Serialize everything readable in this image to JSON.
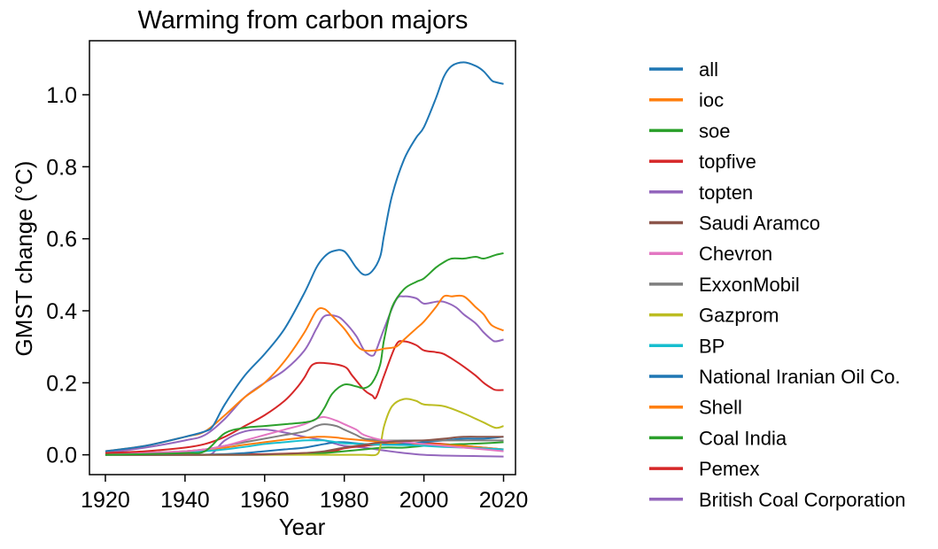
{
  "chart_data": {
    "type": "line",
    "title": "Warming from carbon majors",
    "xlabel": "Year",
    "ylabel": "GMST change (°C)",
    "xlim": [
      1916,
      2023
    ],
    "ylim": [
      -0.055,
      1.15
    ],
    "xticks": [
      1920,
      1940,
      1960,
      1980,
      2000,
      2020
    ],
    "yticks": [
      0.0,
      0.2,
      0.4,
      0.6,
      0.8,
      1.0
    ],
    "ytick_labels": [
      "0.0",
      "0.2",
      "0.4",
      "0.6",
      "0.8",
      "1.0"
    ],
    "grid": false,
    "legend_position": "right, outside plot",
    "series": [
      {
        "name": "all",
        "color": "#1f77b4",
        "x": [
          1920,
          1930,
          1940,
          1945,
          1947,
          1950,
          1955,
          1960,
          1965,
          1970,
          1973,
          1975,
          1977,
          1980,
          1983,
          1985,
          1987,
          1989,
          1990,
          1992,
          1995,
          1998,
          2000,
          2003,
          2005,
          2007,
          2010,
          2013,
          2015,
          2017,
          2018,
          2020
        ],
        "y": [
          0.01,
          0.025,
          0.05,
          0.065,
          0.08,
          0.14,
          0.22,
          0.28,
          0.35,
          0.45,
          0.52,
          0.55,
          0.565,
          0.565,
          0.52,
          0.5,
          0.51,
          0.55,
          0.61,
          0.72,
          0.82,
          0.88,
          0.91,
          0.99,
          1.05,
          1.08,
          1.09,
          1.08,
          1.065,
          1.04,
          1.035,
          1.03
        ]
      },
      {
        "name": "ioc",
        "color": "#ff7f0e",
        "x": [
          1920,
          1930,
          1940,
          1945,
          1950,
          1955,
          1960,
          1965,
          1970,
          1973,
          1975,
          1977,
          1980,
          1983,
          1985,
          1988,
          1990,
          1993,
          1995,
          1998,
          2000,
          2003,
          2005,
          2007,
          2010,
          2013,
          2015,
          2017,
          2020
        ],
        "y": [
          0.01,
          0.025,
          0.05,
          0.065,
          0.11,
          0.16,
          0.2,
          0.26,
          0.34,
          0.4,
          0.405,
          0.385,
          0.35,
          0.305,
          0.29,
          0.29,
          0.295,
          0.3,
          0.32,
          0.35,
          0.37,
          0.41,
          0.44,
          0.44,
          0.44,
          0.41,
          0.39,
          0.36,
          0.345
        ]
      },
      {
        "name": "soe",
        "color": "#2ca02c",
        "x": [
          1920,
          1930,
          1940,
          1945,
          1950,
          1955,
          1960,
          1965,
          1970,
          1973,
          1975,
          1977,
          1980,
          1983,
          1985,
          1987,
          1989,
          1990,
          1992,
          1995,
          1998,
          2000,
          2003,
          2005,
          2007,
          2010,
          2013,
          2015,
          2018,
          2020
        ],
        "y": [
          0.0,
          0.002,
          0.005,
          0.01,
          0.06,
          0.075,
          0.08,
          0.085,
          0.09,
          0.1,
          0.13,
          0.17,
          0.195,
          0.19,
          0.185,
          0.2,
          0.25,
          0.32,
          0.41,
          0.46,
          0.48,
          0.49,
          0.52,
          0.535,
          0.545,
          0.545,
          0.55,
          0.545,
          0.555,
          0.56
        ]
      },
      {
        "name": "topfive",
        "color": "#d62728",
        "x": [
          1920,
          1930,
          1940,
          1945,
          1950,
          1955,
          1960,
          1965,
          1968,
          1970,
          1972,
          1975,
          1980,
          1982,
          1985,
          1987,
          1988,
          1990,
          1993,
          1995,
          1998,
          2000,
          2003,
          2005,
          2008,
          2010,
          2013,
          2015,
          2017,
          2018,
          2020
        ],
        "y": [
          0.005,
          0.01,
          0.02,
          0.03,
          0.05,
          0.08,
          0.11,
          0.15,
          0.185,
          0.215,
          0.25,
          0.255,
          0.245,
          0.22,
          0.18,
          0.165,
          0.16,
          0.22,
          0.305,
          0.315,
          0.305,
          0.29,
          0.285,
          0.28,
          0.26,
          0.245,
          0.22,
          0.2,
          0.185,
          0.18,
          0.18
        ]
      },
      {
        "name": "topten",
        "color": "#9467bd",
        "x": [
          1920,
          1930,
          1940,
          1945,
          1950,
          1955,
          1960,
          1965,
          1970,
          1973,
          1975,
          1978,
          1980,
          1983,
          1985,
          1987,
          1988,
          1990,
          1993,
          1995,
          1998,
          2000,
          2003,
          2005,
          2008,
          2010,
          2013,
          2015,
          2017,
          2018,
          2020
        ],
        "y": [
          0.005,
          0.02,
          0.04,
          0.055,
          0.1,
          0.16,
          0.2,
          0.235,
          0.29,
          0.35,
          0.385,
          0.385,
          0.37,
          0.33,
          0.29,
          0.275,
          0.29,
          0.35,
          0.43,
          0.44,
          0.435,
          0.42,
          0.425,
          0.425,
          0.41,
          0.39,
          0.365,
          0.34,
          0.32,
          0.315,
          0.32
        ]
      },
      {
        "name": "Saudi Aramco",
        "color": "#8c564b",
        "x": [
          1920,
          1940,
          1950,
          1960,
          1970,
          1975,
          1980,
          1990,
          2000,
          2005,
          2010,
          2015,
          2020
        ],
        "y": [
          0.0,
          0.0,
          0.0,
          0.001,
          0.005,
          0.01,
          0.02,
          0.035,
          0.04,
          0.045,
          0.05,
          0.05,
          0.05
        ]
      },
      {
        "name": "Chevron",
        "color": "#e377c2",
        "x": [
          1920,
          1930,
          1940,
          1945,
          1950,
          1955,
          1960,
          1965,
          1970,
          1973,
          1975,
          1978,
          1980,
          1983,
          1985,
          1990,
          1995,
          2000,
          2005,
          2010,
          2015,
          2020
        ],
        "y": [
          0.0,
          0.005,
          0.01,
          0.015,
          0.025,
          0.04,
          0.055,
          0.07,
          0.085,
          0.1,
          0.105,
          0.095,
          0.085,
          0.07,
          0.055,
          0.04,
          0.035,
          0.03,
          0.025,
          0.02,
          0.015,
          0.01
        ]
      },
      {
        "name": "ExxonMobil",
        "color": "#7f7f7f",
        "x": [
          1920,
          1930,
          1940,
          1945,
          1950,
          1955,
          1960,
          1965,
          1970,
          1973,
          1975,
          1978,
          1980,
          1983,
          1985,
          1990,
          1995,
          2000,
          2005,
          2010,
          2015,
          2020
        ],
        "y": [
          0.0,
          0.005,
          0.01,
          0.015,
          0.025,
          0.035,
          0.045,
          0.055,
          0.065,
          0.08,
          0.085,
          0.08,
          0.07,
          0.055,
          0.045,
          0.04,
          0.04,
          0.04,
          0.04,
          0.04,
          0.04,
          0.04
        ]
      },
      {
        "name": "Gazprom",
        "color": "#bcbd22",
        "x": [
          1920,
          1940,
          1960,
          1980,
          1985,
          1988,
          1989,
          1990,
          1992,
          1995,
          1998,
          2000,
          2005,
          2010,
          2013,
          2015,
          2018,
          2020
        ],
        "y": [
          0.0,
          0.0,
          0.0,
          0.0,
          0.0,
          0.0,
          0.02,
          0.08,
          0.135,
          0.155,
          0.15,
          0.14,
          0.135,
          0.115,
          0.1,
          0.09,
          0.075,
          0.08
        ]
      },
      {
        "name": "BP",
        "color": "#17becf",
        "x": [
          1920,
          1930,
          1940,
          1945,
          1950,
          1955,
          1960,
          1965,
          1970,
          1973,
          1975,
          1978,
          1980,
          1985,
          1990,
          1995,
          2000,
          2005,
          2010,
          2015,
          2020
        ],
        "y": [
          0.0,
          0.002,
          0.005,
          0.01,
          0.015,
          0.022,
          0.03,
          0.035,
          0.04,
          0.04,
          0.04,
          0.035,
          0.032,
          0.03,
          0.028,
          0.027,
          0.025,
          0.022,
          0.02,
          0.018,
          0.015
        ]
      },
      {
        "name": "National Iranian Oil Co.",
        "color": "#1f77b4",
        "x": [
          1920,
          1940,
          1950,
          1955,
          1960,
          1965,
          1970,
          1975,
          1978,
          1980,
          1985,
          1990,
          1995,
          2000,
          2005,
          2010,
          2015,
          2020
        ],
        "y": [
          0.0,
          0.0,
          0.002,
          0.005,
          0.01,
          0.015,
          0.02,
          0.03,
          0.035,
          0.035,
          0.03,
          0.028,
          0.03,
          0.035,
          0.04,
          0.045,
          0.045,
          0.05
        ]
      },
      {
        "name": "Shell",
        "color": "#ff7f0e",
        "x": [
          1920,
          1930,
          1940,
          1945,
          1950,
          1955,
          1960,
          1965,
          1970,
          1973,
          1975,
          1978,
          1980,
          1985,
          1990,
          1995,
          2000,
          2005,
          2010,
          2015,
          2020
        ],
        "y": [
          0.0,
          0.005,
          0.01,
          0.015,
          0.02,
          0.028,
          0.035,
          0.042,
          0.048,
          0.05,
          0.05,
          0.048,
          0.045,
          0.04,
          0.035,
          0.03,
          0.03,
          0.028,
          0.025,
          0.02,
          0.015
        ]
      },
      {
        "name": "Coal India",
        "color": "#2ca02c",
        "x": [
          1920,
          1940,
          1960,
          1970,
          1975,
          1980,
          1985,
          1990,
          1995,
          2000,
          2005,
          2010,
          2015,
          2020
        ],
        "y": [
          0.0,
          0.0,
          0.0,
          0.002,
          0.005,
          0.01,
          0.015,
          0.02,
          0.02,
          0.025,
          0.028,
          0.03,
          0.032,
          0.035
        ]
      },
      {
        "name": "Pemex",
        "color": "#d62728",
        "x": [
          1920,
          1940,
          1960,
          1970,
          1975,
          1978,
          1980,
          1985,
          1990,
          1995,
          2000,
          2005,
          2010,
          2015,
          2020
        ],
        "y": [
          0.0,
          0.0,
          0.002,
          0.005,
          0.008,
          0.012,
          0.018,
          0.025,
          0.03,
          0.032,
          0.032,
          0.03,
          0.025,
          0.02,
          0.015
        ]
      },
      {
        "name": "British Coal Corporation",
        "color": "#9467bd",
        "x": [
          1920,
          1930,
          1940,
          1945,
          1947,
          1950,
          1955,
          1960,
          1965,
          1970,
          1975,
          1978,
          1980,
          1985,
          1990,
          1995,
          2000,
          2005,
          2010,
          2015,
          2020
        ],
        "y": [
          0.0,
          0.0,
          0.0,
          0.0,
          0.005,
          0.04,
          0.065,
          0.07,
          0.062,
          0.05,
          0.04,
          0.03,
          0.025,
          0.02,
          0.012,
          0.005,
          0.0,
          -0.002,
          -0.003,
          -0.004,
          -0.005
        ]
      }
    ]
  }
}
